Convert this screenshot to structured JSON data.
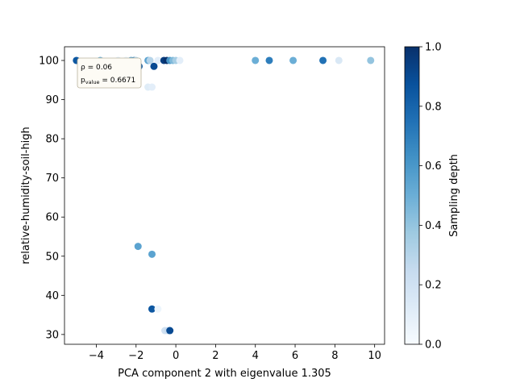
{
  "chart_data": {
    "type": "scatter",
    "xlabel": "PCA component 2 with eigenvalue 1.305",
    "ylabel": "relative-humidity-soil-high",
    "xlim": [
      -5.6,
      10.5
    ],
    "ylim": [
      27.5,
      103.5
    ],
    "xticks": [
      -4,
      -2,
      0,
      2,
      4,
      6,
      8,
      10
    ],
    "yticks": [
      30,
      40,
      50,
      60,
      70,
      80,
      90,
      100
    ],
    "colorbar": {
      "label": "Sampling depth",
      "range": [
        0.0,
        1.0
      ],
      "ticks": [
        0.0,
        0.2,
        0.4,
        0.6,
        0.8,
        1.0
      ],
      "colormap": "Blues",
      "colors": [
        "#f7fbff",
        "#deebf7",
        "#c6dbef",
        "#9ecae1",
        "#6baed6",
        "#4292c6",
        "#2171b5",
        "#08519c",
        "#08306b"
      ]
    },
    "annotation": {
      "rho_label": "ρ = 0.06",
      "p_label": "p",
      "p_sub": "value",
      "p_value": " = 0.6671"
    },
    "points": [
      {
        "x": -5.0,
        "y": 100,
        "c": 0.85
      },
      {
        "x": -3.8,
        "y": 100,
        "c": 0.5
      },
      {
        "x": -2.9,
        "y": 100,
        "c": 0.12
      },
      {
        "x": -2.5,
        "y": 100,
        "c": 0.1
      },
      {
        "x": -2.25,
        "y": 100,
        "c": 0.55
      },
      {
        "x": -2.1,
        "y": 100,
        "c": 0.65
      },
      {
        "x": -2.0,
        "y": 100,
        "c": 0.3
      },
      {
        "x": -2.05,
        "y": 98.5,
        "c": 0.35
      },
      {
        "x": -1.85,
        "y": 98.5,
        "c": 0.85
      },
      {
        "x": -1.4,
        "y": 100,
        "c": 0.55
      },
      {
        "x": -1.3,
        "y": 100,
        "c": 0.3
      },
      {
        "x": -1.1,
        "y": 98.5,
        "c": 0.9
      },
      {
        "x": -0.9,
        "y": 100,
        "c": 0.1
      },
      {
        "x": -0.6,
        "y": 100,
        "c": 0.95
      },
      {
        "x": -0.45,
        "y": 100,
        "c": 1.0
      },
      {
        "x": -0.3,
        "y": 100,
        "c": 0.6
      },
      {
        "x": -0.15,
        "y": 100,
        "c": 0.45
      },
      {
        "x": 0.0,
        "y": 100,
        "c": 0.35
      },
      {
        "x": 0.2,
        "y": 100,
        "c": 0.1
      },
      {
        "x": -1.4,
        "y": 93.2,
        "c": 0.12
      },
      {
        "x": -1.2,
        "y": 93.2,
        "c": 0.1
      },
      {
        "x": 4.0,
        "y": 100,
        "c": 0.5
      },
      {
        "x": 4.7,
        "y": 100,
        "c": 0.7
      },
      {
        "x": 5.9,
        "y": 100,
        "c": 0.5
      },
      {
        "x": 7.4,
        "y": 100,
        "c": 0.75
      },
      {
        "x": 8.2,
        "y": 100,
        "c": 0.15
      },
      {
        "x": 9.8,
        "y": 100,
        "c": 0.4
      },
      {
        "x": -1.9,
        "y": 52.5,
        "c": 0.55
      },
      {
        "x": -1.2,
        "y": 50.5,
        "c": 0.55
      },
      {
        "x": -1.2,
        "y": 36.5,
        "c": 0.85
      },
      {
        "x": -0.9,
        "y": 36.5,
        "c": 0.05
      },
      {
        "x": -0.55,
        "y": 31,
        "c": 0.2
      },
      {
        "x": -0.4,
        "y": 31,
        "c": 0.25
      },
      {
        "x": -0.3,
        "y": 31,
        "c": 0.9
      }
    ]
  }
}
